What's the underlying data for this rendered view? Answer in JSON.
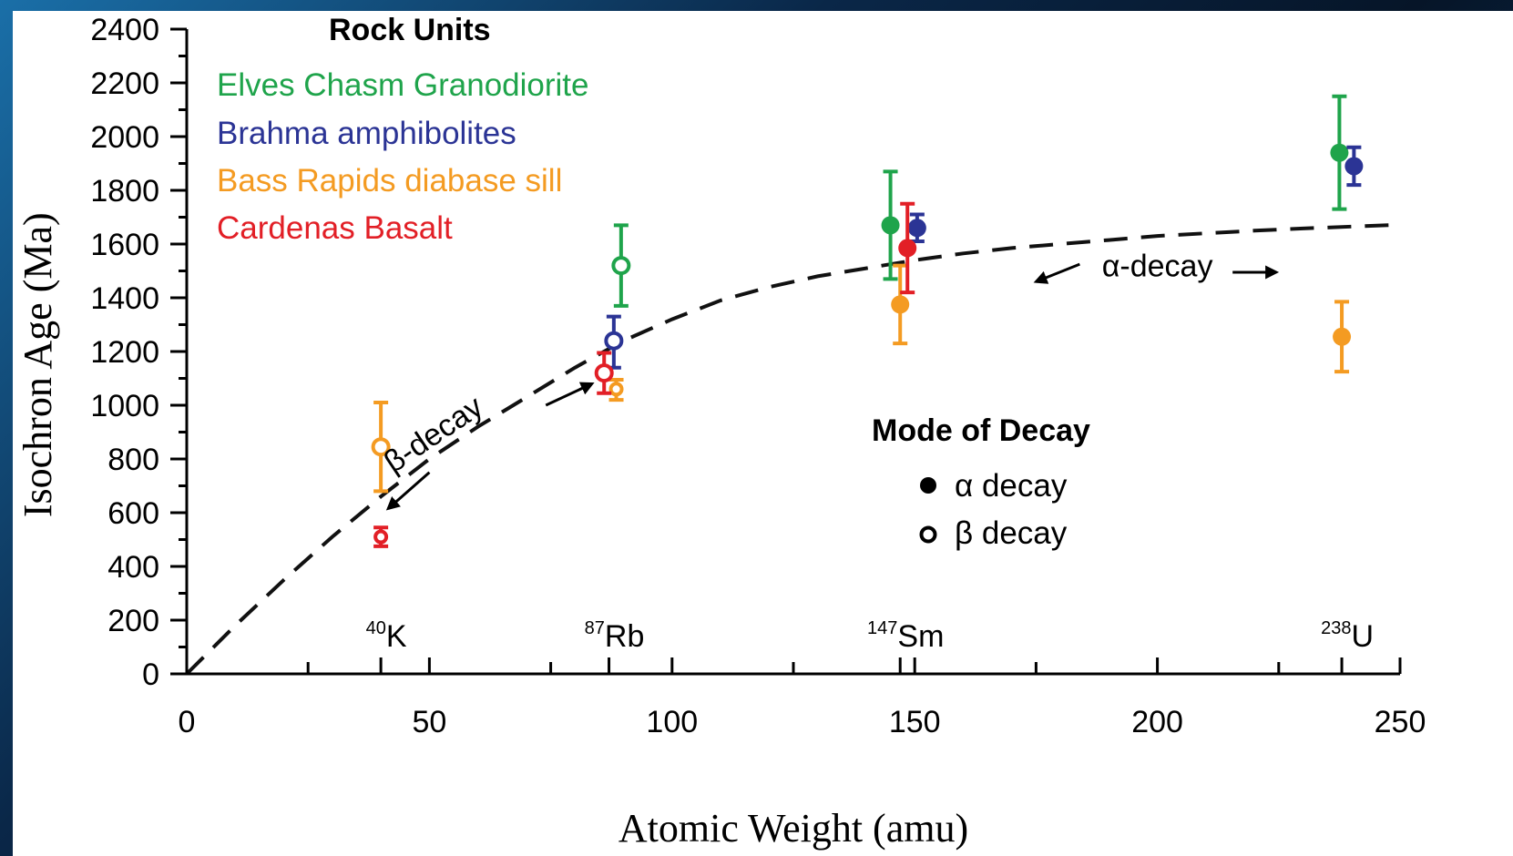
{
  "chart_data": {
    "type": "scatter",
    "xlabel": "Atomic Weight (amu)",
    "ylabel": "Isochron Age (Ma)",
    "xlim": [
      0,
      250
    ],
    "ylim": [
      0,
      2400
    ],
    "x_ticks": [
      0,
      50,
      100,
      150,
      200,
      250
    ],
    "y_ticks": [
      0,
      200,
      400,
      600,
      800,
      1000,
      1200,
      1400,
      1600,
      1800,
      2000,
      2200,
      2400
    ],
    "grid": false,
    "legend_title": "Rock Units",
    "legend_position": "top-left",
    "isotopes": [
      {
        "mass": "40",
        "symbol": "K",
        "x": 40
      },
      {
        "mass": "87",
        "symbol": "Rb",
        "x": 87
      },
      {
        "mass": "147",
        "symbol": "Sm",
        "x": 147
      },
      {
        "mass": "238",
        "symbol": "U",
        "x": 238
      }
    ],
    "series": [
      {
        "name": "Elves Chasm Granodiorite",
        "color": "#1fa44b",
        "points": [
          {
            "x": 89.5,
            "y": 1520,
            "err_low": 1370,
            "err_high": 1670,
            "decay": "beta"
          },
          {
            "x": 145,
            "y": 1670,
            "err_low": 1470,
            "err_high": 1870,
            "decay": "alpha"
          },
          {
            "x": 237.5,
            "y": 1940,
            "err_low": 1730,
            "err_high": 2150,
            "decay": "alpha"
          }
        ]
      },
      {
        "name": "Brahma amphibolites",
        "color": "#2b3495",
        "points": [
          {
            "x": 88,
            "y": 1240,
            "err_low": 1140,
            "err_high": 1330,
            "decay": "beta"
          },
          {
            "x": 150.5,
            "y": 1660,
            "err_low": 1610,
            "err_high": 1710,
            "decay": "alpha"
          },
          {
            "x": 240.5,
            "y": 1890,
            "err_low": 1820,
            "err_high": 1960,
            "decay": "alpha"
          }
        ]
      },
      {
        "name": "Bass Rapids diabase sill",
        "color": "#f49b22",
        "points": [
          {
            "x": 40,
            "y": 845,
            "err_low": 680,
            "err_high": 1010,
            "decay": "beta"
          },
          {
            "x": 88.5,
            "y": 1060,
            "err_low": 1020,
            "err_high": 1095,
            "decay": "beta"
          },
          {
            "x": 147,
            "y": 1375,
            "err_low": 1230,
            "err_high": 1520,
            "decay": "alpha"
          },
          {
            "x": 238,
            "y": 1255,
            "err_low": 1125,
            "err_high": 1385,
            "decay": "alpha"
          }
        ]
      },
      {
        "name": "Cardenas Basalt",
        "color": "#e21f26",
        "points": [
          {
            "x": 40,
            "y": 510,
            "err_low": 475,
            "err_high": 545,
            "decay": "beta"
          },
          {
            "x": 86,
            "y": 1120,
            "err_low": 1045,
            "err_high": 1195,
            "decay": "beta"
          },
          {
            "x": 148.5,
            "y": 1585,
            "err_low": 1420,
            "err_high": 1750,
            "decay": "alpha"
          }
        ]
      }
    ],
    "trend_curve": {
      "style": "dashed",
      "points": [
        [
          0,
          0
        ],
        [
          10,
          180
        ],
        [
          20,
          350
        ],
        [
          30,
          510
        ],
        [
          40,
          660
        ],
        [
          50,
          800
        ],
        [
          60,
          920
        ],
        [
          70,
          1030
        ],
        [
          80,
          1140
        ],
        [
          90,
          1240
        ],
        [
          100,
          1320
        ],
        [
          110,
          1390
        ],
        [
          120,
          1440
        ],
        [
          130,
          1480
        ],
        [
          140,
          1510
        ],
        [
          150,
          1540
        ],
        [
          160,
          1565
        ],
        [
          170,
          1585
        ],
        [
          180,
          1600
        ],
        [
          190,
          1615
        ],
        [
          200,
          1630
        ],
        [
          210,
          1640
        ],
        [
          220,
          1650
        ],
        [
          230,
          1658
        ],
        [
          240,
          1665
        ],
        [
          250,
          1672
        ]
      ]
    },
    "annotations": [
      {
        "text": "β-decay",
        "x": 52,
        "y": 860,
        "rotation": -34
      },
      {
        "text": "α-decay",
        "x": 200,
        "y": 1500,
        "rotation": 0
      }
    ],
    "decay_legend": {
      "title": "Mode of Decay",
      "items": [
        {
          "symbol": "filled",
          "label": "α decay"
        },
        {
          "symbol": "open",
          "label": "β decay"
        }
      ]
    }
  }
}
